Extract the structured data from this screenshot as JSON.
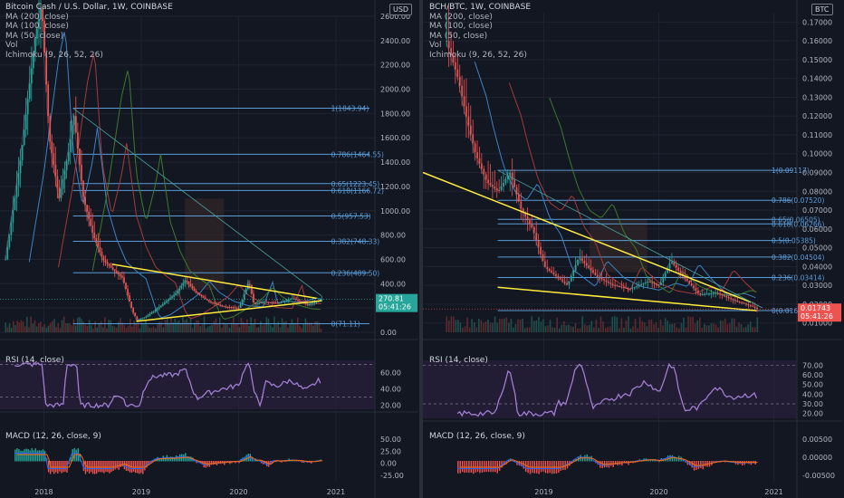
{
  "colors": {
    "bg": "#131722",
    "grid": "#1f2330",
    "axis_text": "#b2b5be",
    "fib": "#5b9cd6",
    "yellow": "#ffeb3b",
    "rsi": "#a07fd0",
    "rsi_band": "#2a1f3d",
    "macd": "#2962ff",
    "signal": "#ff6d00",
    "hist_up": "#26a69a",
    "hist_down": "#ef5350",
    "price_badge": "#26a69a",
    "price_badge_red": "#ef5350",
    "cloud": "#3a2a2a"
  },
  "left": {
    "title": "Bitcoin Cash / U.S. Dollar, 1W, COINBASE",
    "indicators": [
      "MA (200, close)",
      "MA (100, close)",
      "MA (50, close)",
      "Vol",
      "Ichimoku (9, 26, 52, 26)"
    ],
    "currency": "USD",
    "price_ticks": [
      "2600.00",
      "2400.00",
      "2200.00",
      "2000.00",
      "1800.00",
      "1600.00",
      "1400.00",
      "1200.00",
      "1000.00",
      "800.00",
      "600.00",
      "400.00",
      "200.00",
      "0.00"
    ],
    "current_price": "270.81",
    "countdown": "05:41:26",
    "rsi_label": "RSI (14, close)",
    "rsi_ticks": [
      "60.00",
      "40.00",
      "20.00"
    ],
    "macd_label": "MACD (12, 26, close, 9)",
    "macd_ticks": [
      "50.00",
      "25.00",
      "0.00",
      "-25.00"
    ],
    "x_ticks": [
      "2018",
      "2019",
      "2020",
      "2021"
    ],
    "fib_labels": [
      "1(1843.94)",
      "0.786(1464.55)",
      "0.65(1223.45)",
      "0.618(1166.72)",
      "0.5(957.53)",
      "0.382(748.33)",
      "0.236(489.50)",
      "0(71.11)"
    ]
  },
  "right": {
    "title": "BCH/BTC, 1W, COINBASE",
    "indicators": [
      "MA (200, close)",
      "MA (100, close)",
      "MA (50, close)",
      "Vol",
      "Ichimoku (9, 26, 52, 26)"
    ],
    "currency": "BTC",
    "price_ticks": [
      "0.17000",
      "0.16000",
      "0.15000",
      "0.14000",
      "0.13000",
      "0.12000",
      "0.11000",
      "0.10000",
      "0.09000",
      "0.08000",
      "0.07000",
      "0.06000",
      "0.05000",
      "0.04000",
      "0.03000",
      "0.02000",
      "0.01000"
    ],
    "current_price": "0.01743",
    "countdown": "05:41:26",
    "rsi_label": "RSI (14, close)",
    "rsi_ticks": [
      "70.00",
      "60.00",
      "50.00",
      "40.00",
      "30.00",
      "20.00"
    ],
    "macd_label": "MACD (12, 26, close, 9)",
    "macd_ticks": [
      "0.00500",
      "0.00000",
      "-0.00500"
    ],
    "x_ticks": [
      "2019",
      "2020",
      "2021"
    ],
    "fib_labels": [
      "1(0.09117)",
      "0.786(0.07520)",
      "0.65(0.06505)",
      "0.618(0.06266)",
      "0.5(0.05385)",
      "0.382(0.04504)",
      "0.236(0.03414)",
      "0(0.01653)"
    ]
  },
  "chart_data": [
    {
      "type": "line",
      "title": "Bitcoin Cash / U.S. Dollar, 1W, COINBASE",
      "xlabel": "",
      "ylabel": "",
      "x_ticks": [
        "2018",
        "2019",
        "2020",
        "2021"
      ],
      "ylim": [
        0,
        2600
      ],
      "series": [
        {
          "name": "",
          "x": [
            2017.6,
            2017.75,
            2017.9,
            2017.97,
            2018.05,
            2018.15,
            2018.25,
            2018.3,
            2018.4,
            2018.5,
            2018.6,
            2018.7,
            2018.8,
            2018.9,
            2018.95,
            2019.05,
            2019.2,
            2019.35,
            2019.45,
            2019.55,
            2019.7,
            2019.85,
            2020.0,
            2020.1,
            2020.15,
            2020.25,
            2020.4,
            2020.55,
            2020.7,
            2020.85
          ],
          "y": [
            600,
            1400,
            2400,
            2700,
            1600,
            1100,
            1500,
            1800,
            1100,
            800,
            600,
            520,
            450,
            180,
            100,
            130,
            220,
            320,
            430,
            330,
            250,
            210,
            200,
            420,
            230,
            250,
            240,
            280,
            230,
            270
          ]
        }
      ],
      "fibonacci": [
        {
          "level": "1",
          "value": 1843.94
        },
        {
          "level": "0.786",
          "value": 1464.55
        },
        {
          "level": "0.65",
          "value": 1223.45
        },
        {
          "level": "0.618",
          "value": 1166.72
        },
        {
          "level": "0.5",
          "value": 957.53
        },
        {
          "level": "0.382",
          "value": 748.33
        },
        {
          "level": "0.236",
          "value": 489.5
        },
        {
          "level": "0",
          "value": 71.11
        }
      ],
      "current_price": 270.81
    },
    {
      "type": "line",
      "title": "BCH/BTC, 1W, COINBASE",
      "xlabel": "",
      "ylabel": "",
      "x_ticks": [
        "2019",
        "2020",
        "2021"
      ],
      "ylim": [
        0.005,
        0.175
      ],
      "series": [
        {
          "name": "",
          "x": [
            2018.15,
            2018.25,
            2018.32,
            2018.4,
            2018.5,
            2018.6,
            2018.7,
            2018.8,
            2018.9,
            2019.0,
            2019.1,
            2019.2,
            2019.3,
            2019.45,
            2019.6,
            2019.75,
            2019.9,
            2020.0,
            2020.1,
            2020.2,
            2020.35,
            2020.5,
            2020.65,
            2020.8,
            2020.85
          ],
          "y": [
            0.16,
            0.14,
            0.12,
            0.1,
            0.085,
            0.08,
            0.09,
            0.07,
            0.06,
            0.04,
            0.035,
            0.03,
            0.045,
            0.035,
            0.03,
            0.028,
            0.032,
            0.03,
            0.043,
            0.035,
            0.025,
            0.026,
            0.022,
            0.019,
            0.0174
          ]
        }
      ],
      "fibonacci": [
        {
          "level": "1",
          "value": 0.09117
        },
        {
          "level": "0.786",
          "value": 0.0752
        },
        {
          "level": "0.65",
          "value": 0.06505
        },
        {
          "level": "0.618",
          "value": 0.06266
        },
        {
          "level": "0.5",
          "value": 0.05385
        },
        {
          "level": "0.382",
          "value": 0.04504
        },
        {
          "level": "0.236",
          "value": 0.03414
        },
        {
          "level": "0",
          "value": 0.01653
        }
      ],
      "current_price": 0.01743
    }
  ]
}
